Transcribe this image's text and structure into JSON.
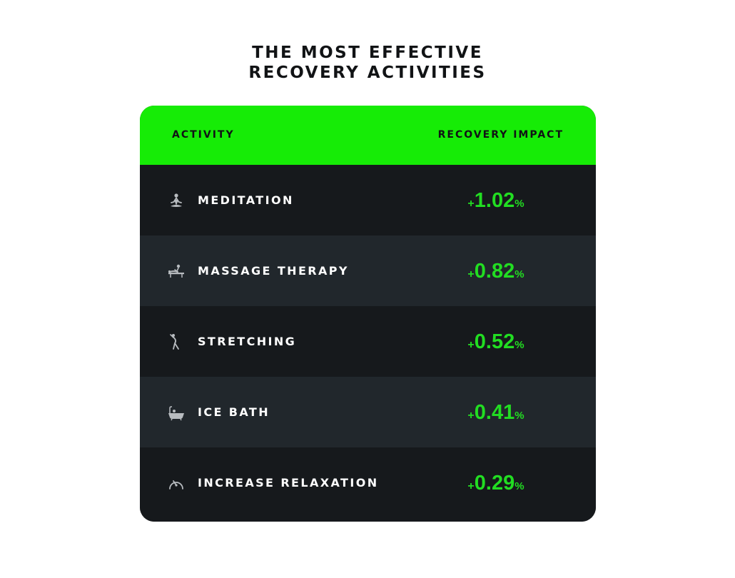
{
  "title": {
    "line1": "THE MOST EFFECTIVE",
    "line2": "RECOVERY ACTIVITIES"
  },
  "chart_data": {
    "type": "table",
    "columns": [
      "ACTIVITY",
      "RECOVERY IMPACT"
    ],
    "rows": [
      {
        "activity": "MEDITATION",
        "icon": "meditation-icon",
        "sign": "+",
        "value": "1.02",
        "unit": "%"
      },
      {
        "activity": "MASSAGE THERAPY",
        "icon": "massage-icon",
        "sign": "+",
        "value": "0.82",
        "unit": "%"
      },
      {
        "activity": "STRETCHING",
        "icon": "stretching-icon",
        "sign": "+",
        "value": "0.52",
        "unit": "%"
      },
      {
        "activity": "ICE BATH",
        "icon": "bathtub-icon",
        "sign": "+",
        "value": "0.41",
        "unit": "%"
      },
      {
        "activity": "INCREASE RELAXATION",
        "icon": "gauge-icon",
        "sign": "+",
        "value": "0.29",
        "unit": "%"
      }
    ]
  },
  "colors": {
    "header_bg": "#16ec06",
    "row_dark": "#16191c",
    "row_light": "#21272c",
    "value_green": "#22dd22",
    "text_white": "#ffffff",
    "title_text": "#111315"
  }
}
